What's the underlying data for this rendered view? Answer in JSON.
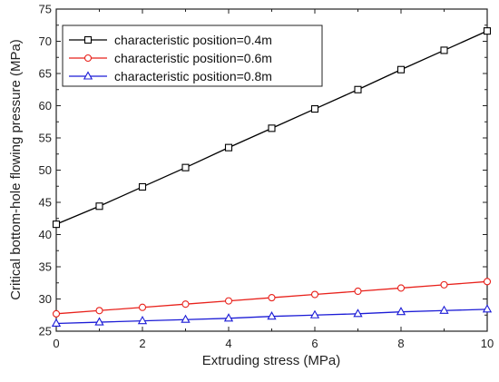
{
  "chart_data": {
    "type": "line",
    "xlabel": "Extruding stress (MPa)",
    "ylabel": "Critical bottom-hole flowing pressure (MPa)",
    "xlim": [
      0,
      10
    ],
    "ylim": [
      25,
      75
    ],
    "x_ticks": [
      "0",
      "2",
      "4",
      "6",
      "8",
      "10"
    ],
    "y_ticks": [
      "25",
      "30",
      "35",
      "40",
      "45",
      "50",
      "55",
      "60",
      "65",
      "70",
      "75"
    ],
    "grid": false,
    "legend_position": "top-left",
    "x": [
      0,
      1,
      2,
      3,
      4,
      5,
      6,
      7,
      8,
      9,
      10
    ],
    "series": [
      {
        "name": "characteristic position=0.4m",
        "color": "#000000",
        "marker": "square",
        "values": [
          41.6,
          44.4,
          47.4,
          50.4,
          53.5,
          56.5,
          59.5,
          62.5,
          65.6,
          68.6,
          71.6
        ]
      },
      {
        "name": "characteristic position=0.6m",
        "color": "#e8211b",
        "marker": "circle",
        "values": [
          27.7,
          28.2,
          28.7,
          29.2,
          29.7,
          30.2,
          30.7,
          31.2,
          31.7,
          32.2,
          32.7
        ]
      },
      {
        "name": "characteristic position=0.8m",
        "color": "#1c1cd6",
        "marker": "triangle",
        "values": [
          26.2,
          26.4,
          26.6,
          26.8,
          27.0,
          27.3,
          27.5,
          27.7,
          28.0,
          28.2,
          28.4
        ]
      }
    ]
  }
}
